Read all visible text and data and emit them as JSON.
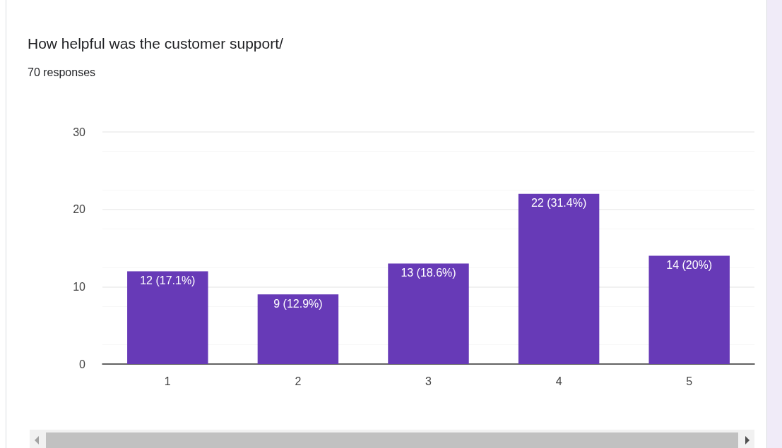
{
  "chart_data": {
    "type": "bar",
    "title": "How helpful was the customer support/",
    "subtitle": "70 responses",
    "categories": [
      "1",
      "2",
      "3",
      "4",
      "5"
    ],
    "values": [
      12,
      9,
      13,
      22,
      14
    ],
    "value_labels": [
      "12 (17.1%)",
      "9 (12.9%)",
      "13 (18.6%)",
      "22 (31.4%)",
      "14 (20%)"
    ],
    "color": "#673ab7",
    "ylim": [
      0,
      30
    ],
    "yticks": [
      0,
      10,
      20,
      30
    ],
    "grid": "y"
  }
}
